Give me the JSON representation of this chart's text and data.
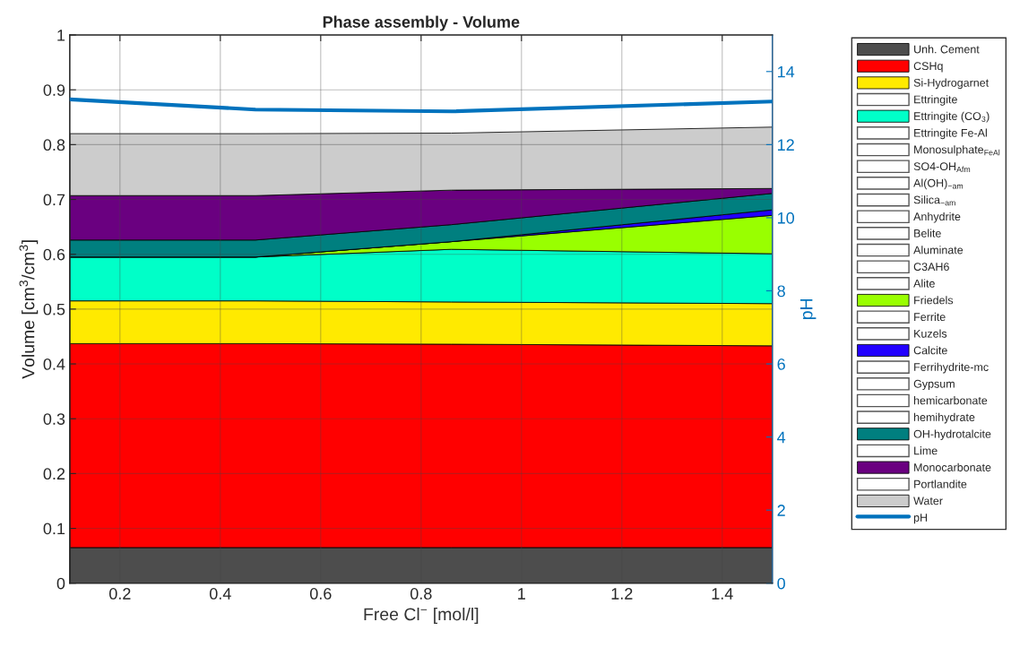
{
  "chart_data": {
    "type": "area",
    "stacked": true,
    "title": "Phase assembly - Volume",
    "xlabel": "Free Cl$^{−}$ [mol/l]",
    "ylabel": "Volume [cm$^{3}$/cm$^{3}$]",
    "y2label": "pH",
    "x": [
      0.1,
      0.47,
      0.86,
      1.5
    ],
    "xlim": [
      0.1,
      1.5
    ],
    "xticks": [
      0.2,
      0.4,
      0.6,
      0.8,
      1,
      1.2,
      1.4
    ],
    "ylim": [
      0,
      1
    ],
    "yticks": [
      0,
      0.1,
      0.2,
      0.3,
      0.4,
      0.5,
      0.6,
      0.7,
      0.8,
      0.9,
      1
    ],
    "y2lim": [
      0,
      15
    ],
    "y2ticks": [
      0,
      2,
      4,
      6,
      8,
      10,
      12,
      14
    ],
    "grid": true,
    "legend": "right",
    "series": [
      {
        "name": "Unh. Cement",
        "color": "#4d4d4d",
        "values": [
          0.065,
          0.065,
          0.065,
          0.065
        ]
      },
      {
        "name": "CSHq",
        "color": "#ff0000",
        "values": [
          0.372,
          0.372,
          0.371,
          0.368
        ]
      },
      {
        "name": "Si-Hydrogarnet",
        "color": "#ffea00",
        "values": [
          0.078,
          0.078,
          0.077,
          0.077
        ]
      },
      {
        "name": "Ettringite",
        "values": [
          null,
          null,
          null,
          null
        ]
      },
      {
        "name": "Ettringite (CO$_{3}$)",
        "color": "#00ffc8",
        "values": [
          0.08,
          0.08,
          0.096,
          0.091
        ]
      },
      {
        "name": "Ettringite Fe-Al",
        "values": [
          null,
          null,
          null,
          null
        ]
      },
      {
        "name": "Monosulphate$_{FeAl}$",
        "values": [
          null,
          null,
          null,
          null
        ]
      },
      {
        "name": "SO4-OH$_{Afm}$",
        "values": [
          null,
          null,
          null,
          null
        ]
      },
      {
        "name": "Al(OH)$_{−am}$",
        "values": [
          null,
          null,
          null,
          null
        ]
      },
      {
        "name": "Silica$_{−am}$",
        "values": [
          null,
          null,
          null,
          null
        ]
      },
      {
        "name": "Anhydrite",
        "values": [
          null,
          null,
          null,
          null
        ]
      },
      {
        "name": "Belite",
        "values": [
          null,
          null,
          null,
          null
        ]
      },
      {
        "name": "Aluminate",
        "values": [
          null,
          null,
          null,
          null
        ]
      },
      {
        "name": "C3AH6",
        "values": [
          null,
          null,
          null,
          null
        ]
      },
      {
        "name": "Alite",
        "values": [
          null,
          null,
          null,
          null
        ]
      },
      {
        "name": "Friedels",
        "color": "#99ff00",
        "values": [
          0,
          0,
          0.014,
          0.07
        ]
      },
      {
        "name": "Ferrite",
        "values": [
          null,
          null,
          null,
          null
        ]
      },
      {
        "name": "Kuzels",
        "values": [
          null,
          null,
          null,
          null
        ]
      },
      {
        "name": "Calcite",
        "color": "#2200ff",
        "values": [
          0,
          0,
          0,
          0.01
        ]
      },
      {
        "name": "Ferrihydrite-mc",
        "values": [
          null,
          null,
          null,
          null
        ]
      },
      {
        "name": "Gypsum",
        "values": [
          null,
          null,
          null,
          null
        ]
      },
      {
        "name": "hemicarbonate",
        "values": [
          null,
          null,
          null,
          null
        ]
      },
      {
        "name": "hemihydrate",
        "values": [
          null,
          null,
          null,
          null
        ]
      },
      {
        "name": "OH-hydrotalcite",
        "color": "#007f7f",
        "values": [
          0.031,
          0.031,
          0.031,
          0.03
        ]
      },
      {
        "name": "Lime",
        "values": [
          null,
          null,
          null,
          null
        ]
      },
      {
        "name": "Monocarbonate",
        "color": "#6a0080",
        "values": [
          0.081,
          0.081,
          0.063,
          0.009
        ]
      },
      {
        "name": "Portlandite",
        "values": [
          null,
          null,
          null,
          null
        ]
      },
      {
        "name": "Water",
        "color": "#cccccc",
        "values": [
          0.113,
          0.113,
          0.104,
          0.112
        ]
      },
      {
        "name": "pH",
        "type": "line",
        "axis": "y2",
        "color": "#0072bd",
        "values": [
          13.24,
          12.96,
          12.91,
          13.18
        ]
      }
    ]
  }
}
